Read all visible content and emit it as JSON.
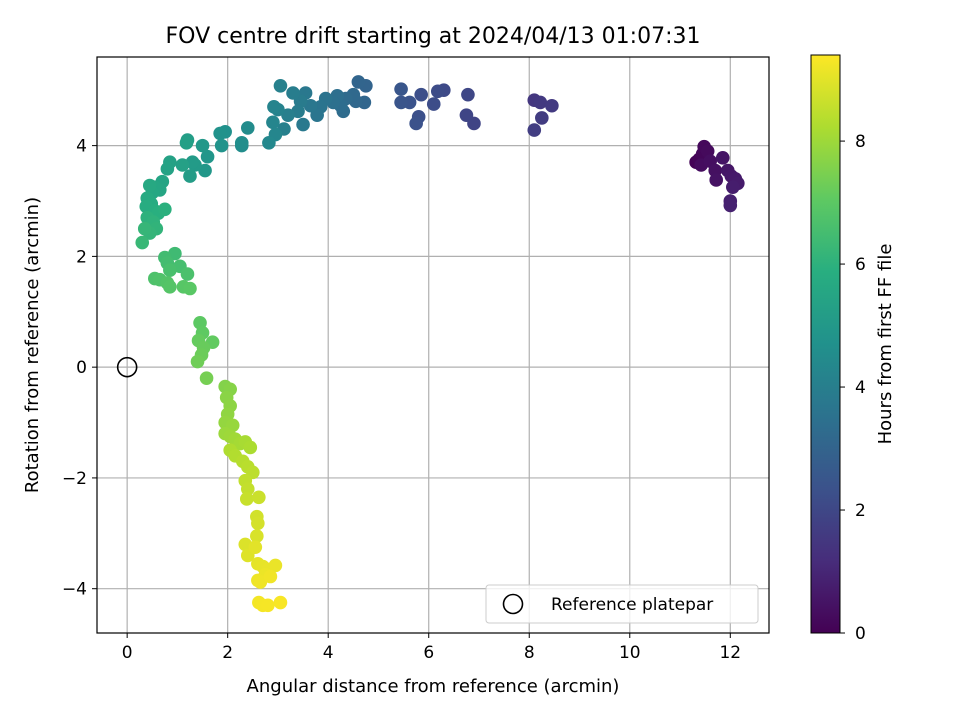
{
  "chart_data": {
    "type": "scatter",
    "title": "FOV centre drift starting at 2024/04/13 01:07:31",
    "xlabel": "Angular distance from reference (arcmin)",
    "ylabel": "Rotation from reference (arcmin)",
    "xlim": [
      -0.6,
      12.77
    ],
    "ylim": [
      -4.8,
      5.6
    ],
    "xticks": [
      0,
      2,
      4,
      6,
      8,
      10,
      12
    ],
    "yticks": [
      -4,
      -2,
      0,
      2,
      4
    ],
    "grid": true,
    "colormap": "viridis",
    "colorbar": {
      "label": "Hours from first FF file",
      "range": [
        0,
        9.4
      ],
      "ticks": [
        0,
        2,
        4,
        6,
        8
      ]
    },
    "legend": {
      "position": "bottom-right",
      "entries": [
        "Reference platepar"
      ]
    },
    "reference_point": {
      "x": 0,
      "y": 0,
      "label": "Reference platepar"
    },
    "points": [
      {
        "x": 11.32,
        "y": 3.7,
        "c": 0.05
      },
      {
        "x": 11.38,
        "y": 3.75,
        "c": 0.1
      },
      {
        "x": 11.45,
        "y": 3.85,
        "c": 0.15
      },
      {
        "x": 11.48,
        "y": 3.98,
        "c": 0.2
      },
      {
        "x": 11.55,
        "y": 3.9,
        "c": 0.25
      },
      {
        "x": 11.42,
        "y": 3.65,
        "c": 0.3
      },
      {
        "x": 11.6,
        "y": 3.72,
        "c": 0.35
      },
      {
        "x": 11.7,
        "y": 3.55,
        "c": 0.4
      },
      {
        "x": 11.72,
        "y": 3.38,
        "c": 0.45
      },
      {
        "x": 11.85,
        "y": 3.78,
        "c": 0.5
      },
      {
        "x": 11.95,
        "y": 3.55,
        "c": 0.55
      },
      {
        "x": 12.02,
        "y": 3.45,
        "c": 0.6
      },
      {
        "x": 12.1,
        "y": 3.4,
        "c": 0.65
      },
      {
        "x": 12.15,
        "y": 3.32,
        "c": 0.7
      },
      {
        "x": 12.05,
        "y": 3.25,
        "c": 0.75
      },
      {
        "x": 12.0,
        "y": 3.0,
        "c": 0.8
      },
      {
        "x": 12.0,
        "y": 2.92,
        "c": 0.85
      },
      {
        "x": 8.1,
        "y": 4.82,
        "c": 1.5
      },
      {
        "x": 8.22,
        "y": 4.78,
        "c": 1.55
      },
      {
        "x": 8.45,
        "y": 4.72,
        "c": 1.6
      },
      {
        "x": 8.25,
        "y": 4.5,
        "c": 1.65
      },
      {
        "x": 8.1,
        "y": 4.28,
        "c": 1.7
      },
      {
        "x": 6.9,
        "y": 4.4,
        "c": 1.9
      },
      {
        "x": 6.75,
        "y": 4.55,
        "c": 1.95
      },
      {
        "x": 6.78,
        "y": 4.92,
        "c": 2.0
      },
      {
        "x": 6.3,
        "y": 5.0,
        "c": 2.1
      },
      {
        "x": 6.18,
        "y": 4.98,
        "c": 2.15
      },
      {
        "x": 6.1,
        "y": 4.75,
        "c": 2.2
      },
      {
        "x": 5.85,
        "y": 4.92,
        "c": 2.25
      },
      {
        "x": 5.8,
        "y": 4.52,
        "c": 2.3
      },
      {
        "x": 5.75,
        "y": 4.4,
        "c": 2.35
      },
      {
        "x": 5.62,
        "y": 4.78,
        "c": 2.4
      },
      {
        "x": 5.45,
        "y": 4.78,
        "c": 2.45
      },
      {
        "x": 5.45,
        "y": 5.02,
        "c": 2.5
      },
      {
        "x": 4.75,
        "y": 5.08,
        "c": 3.0
      },
      {
        "x": 4.6,
        "y": 5.15,
        "c": 3.05
      },
      {
        "x": 4.72,
        "y": 4.78,
        "c": 3.1
      },
      {
        "x": 4.55,
        "y": 4.8,
        "c": 3.15
      },
      {
        "x": 4.5,
        "y": 4.92,
        "c": 3.2
      },
      {
        "x": 4.35,
        "y": 4.85,
        "c": 3.25
      },
      {
        "x": 4.3,
        "y": 4.62,
        "c": 3.3
      },
      {
        "x": 4.25,
        "y": 4.72,
        "c": 3.35
      },
      {
        "x": 4.18,
        "y": 4.9,
        "c": 3.4
      },
      {
        "x": 4.1,
        "y": 4.78,
        "c": 3.45
      },
      {
        "x": 3.95,
        "y": 4.85,
        "c": 3.55
      },
      {
        "x": 3.85,
        "y": 4.7,
        "c": 3.6
      },
      {
        "x": 3.78,
        "y": 4.55,
        "c": 3.65
      },
      {
        "x": 3.65,
        "y": 4.72,
        "c": 3.7
      },
      {
        "x": 3.55,
        "y": 4.95,
        "c": 3.75
      },
      {
        "x": 3.5,
        "y": 4.38,
        "c": 3.8
      },
      {
        "x": 3.45,
        "y": 4.8,
        "c": 3.85
      },
      {
        "x": 3.4,
        "y": 4.62,
        "c": 3.9
      },
      {
        "x": 3.3,
        "y": 4.95,
        "c": 3.95
      },
      {
        "x": 3.2,
        "y": 4.55,
        "c": 4.0
      },
      {
        "x": 3.12,
        "y": 4.3,
        "c": 4.05
      },
      {
        "x": 3.05,
        "y": 5.08,
        "c": 4.1
      },
      {
        "x": 3.0,
        "y": 4.65,
        "c": 4.15
      },
      {
        "x": 2.92,
        "y": 4.7,
        "c": 4.2
      },
      {
        "x": 2.9,
        "y": 4.42,
        "c": 4.25
      },
      {
        "x": 2.95,
        "y": 4.2,
        "c": 4.3
      },
      {
        "x": 2.82,
        "y": 4.05,
        "c": 4.35
      },
      {
        "x": 2.4,
        "y": 4.32,
        "c": 4.5
      },
      {
        "x": 2.28,
        "y": 4.0,
        "c": 4.55
      },
      {
        "x": 2.28,
        "y": 4.05,
        "c": 4.6
      },
      {
        "x": 1.95,
        "y": 4.25,
        "c": 4.7
      },
      {
        "x": 1.85,
        "y": 4.22,
        "c": 4.75
      },
      {
        "x": 1.88,
        "y": 4.0,
        "c": 4.8
      },
      {
        "x": 1.6,
        "y": 3.8,
        "c": 4.9
      },
      {
        "x": 1.55,
        "y": 3.55,
        "c": 4.95
      },
      {
        "x": 1.5,
        "y": 4.0,
        "c": 5.0
      },
      {
        "x": 1.35,
        "y": 3.65,
        "c": 5.05
      },
      {
        "x": 1.3,
        "y": 3.7,
        "c": 5.1
      },
      {
        "x": 1.25,
        "y": 3.45,
        "c": 5.15
      },
      {
        "x": 1.2,
        "y": 4.1,
        "c": 5.2
      },
      {
        "x": 1.18,
        "y": 4.05,
        "c": 5.25
      },
      {
        "x": 1.1,
        "y": 3.65,
        "c": 5.3
      },
      {
        "x": 0.85,
        "y": 3.7,
        "c": 5.35
      },
      {
        "x": 0.8,
        "y": 3.58,
        "c": 5.4
      },
      {
        "x": 0.7,
        "y": 3.35,
        "c": 5.45
      },
      {
        "x": 0.65,
        "y": 3.2,
        "c": 5.5
      },
      {
        "x": 0.55,
        "y": 3.25,
        "c": 5.55
      },
      {
        "x": 0.5,
        "y": 3.15,
        "c": 5.6
      },
      {
        "x": 0.45,
        "y": 3.28,
        "c": 5.65
      },
      {
        "x": 0.4,
        "y": 3.05,
        "c": 5.7
      },
      {
        "x": 0.48,
        "y": 2.95,
        "c": 5.75
      },
      {
        "x": 0.38,
        "y": 2.9,
        "c": 5.8
      },
      {
        "x": 0.55,
        "y": 2.82,
        "c": 5.85
      },
      {
        "x": 0.62,
        "y": 2.78,
        "c": 5.9
      },
      {
        "x": 0.75,
        "y": 2.85,
        "c": 5.95
      },
      {
        "x": 0.4,
        "y": 2.7,
        "c": 6.0
      },
      {
        "x": 0.52,
        "y": 2.62,
        "c": 6.05
      },
      {
        "x": 0.58,
        "y": 2.5,
        "c": 6.1
      },
      {
        "x": 0.45,
        "y": 2.42,
        "c": 6.15
      },
      {
        "x": 0.35,
        "y": 2.5,
        "c": 6.2
      },
      {
        "x": 0.3,
        "y": 2.25,
        "c": 6.25
      },
      {
        "x": 0.95,
        "y": 2.05,
        "c": 6.4
      },
      {
        "x": 0.75,
        "y": 1.98,
        "c": 6.45
      },
      {
        "x": 0.8,
        "y": 1.88,
        "c": 6.5
      },
      {
        "x": 1.05,
        "y": 1.82,
        "c": 6.55
      },
      {
        "x": 0.85,
        "y": 1.75,
        "c": 6.6
      },
      {
        "x": 1.2,
        "y": 1.68,
        "c": 6.65
      },
      {
        "x": 0.55,
        "y": 1.6,
        "c": 6.7
      },
      {
        "x": 0.65,
        "y": 1.58,
        "c": 6.75
      },
      {
        "x": 0.8,
        "y": 1.52,
        "c": 6.8
      },
      {
        "x": 0.85,
        "y": 1.45,
        "c": 6.85
      },
      {
        "x": 1.12,
        "y": 1.45,
        "c": 6.9
      },
      {
        "x": 1.25,
        "y": 1.42,
        "c": 6.95
      },
      {
        "x": 1.45,
        "y": 0.8,
        "c": 7.0
      },
      {
        "x": 1.5,
        "y": 0.62,
        "c": 7.05
      },
      {
        "x": 1.7,
        "y": 0.45,
        "c": 7.1
      },
      {
        "x": 1.42,
        "y": 0.48,
        "c": 7.15
      },
      {
        "x": 1.52,
        "y": 0.35,
        "c": 7.2
      },
      {
        "x": 1.48,
        "y": 0.22,
        "c": 7.25
      },
      {
        "x": 1.4,
        "y": 0.1,
        "c": 7.3
      },
      {
        "x": 1.58,
        "y": -0.2,
        "c": 7.4
      },
      {
        "x": 1.95,
        "y": -0.35,
        "c": 7.6
      },
      {
        "x": 2.05,
        "y": -0.4,
        "c": 7.65
      },
      {
        "x": 1.98,
        "y": -0.55,
        "c": 7.7
      },
      {
        "x": 2.05,
        "y": -0.7,
        "c": 7.75
      },
      {
        "x": 2.0,
        "y": -0.85,
        "c": 7.8
      },
      {
        "x": 1.95,
        "y": -1.0,
        "c": 7.85
      },
      {
        "x": 2.1,
        "y": -1.05,
        "c": 7.9
      },
      {
        "x": 1.95,
        "y": -1.2,
        "c": 7.95
      },
      {
        "x": 2.05,
        "y": -1.25,
        "c": 8.0
      },
      {
        "x": 2.15,
        "y": -1.3,
        "c": 8.05
      },
      {
        "x": 2.25,
        "y": -1.38,
        "c": 8.1
      },
      {
        "x": 2.35,
        "y": -1.35,
        "c": 8.15
      },
      {
        "x": 2.45,
        "y": -1.45,
        "c": 8.2
      },
      {
        "x": 2.05,
        "y": -1.5,
        "c": 8.25
      },
      {
        "x": 2.15,
        "y": -1.6,
        "c": 8.3
      },
      {
        "x": 2.3,
        "y": -1.7,
        "c": 8.35
      },
      {
        "x": 2.4,
        "y": -1.8,
        "c": 8.4
      },
      {
        "x": 2.5,
        "y": -1.9,
        "c": 8.45
      },
      {
        "x": 2.35,
        "y": -2.05,
        "c": 8.5
      },
      {
        "x": 2.4,
        "y": -2.2,
        "c": 8.55
      },
      {
        "x": 2.38,
        "y": -2.38,
        "c": 8.6
      },
      {
        "x": 2.62,
        "y": -2.35,
        "c": 8.65
      },
      {
        "x": 2.58,
        "y": -2.7,
        "c": 8.75
      },
      {
        "x": 2.6,
        "y": -2.82,
        "c": 8.8
      },
      {
        "x": 2.58,
        "y": -3.05,
        "c": 8.85
      },
      {
        "x": 2.35,
        "y": -3.2,
        "c": 8.9
      },
      {
        "x": 2.4,
        "y": -3.4,
        "c": 8.95
      },
      {
        "x": 2.55,
        "y": -3.25,
        "c": 9.0
      },
      {
        "x": 2.6,
        "y": -3.55,
        "c": 9.05
      },
      {
        "x": 2.7,
        "y": -3.6,
        "c": 9.08
      },
      {
        "x": 2.8,
        "y": -3.65,
        "c": 9.1
      },
      {
        "x": 2.95,
        "y": -3.58,
        "c": 9.12
      },
      {
        "x": 2.75,
        "y": -3.75,
        "c": 9.15
      },
      {
        "x": 2.6,
        "y": -3.85,
        "c": 9.18
      },
      {
        "x": 2.65,
        "y": -3.88,
        "c": 9.2
      },
      {
        "x": 2.85,
        "y": -3.78,
        "c": 9.22
      },
      {
        "x": 2.62,
        "y": -4.25,
        "c": 9.25
      },
      {
        "x": 2.7,
        "y": -4.3,
        "c": 9.28
      },
      {
        "x": 2.8,
        "y": -4.3,
        "c": 9.3
      },
      {
        "x": 3.05,
        "y": -4.25,
        "c": 9.33
      }
    ]
  }
}
